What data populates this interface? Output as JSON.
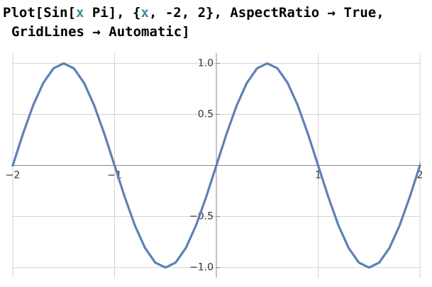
{
  "code": {
    "lines": [
      [
        "Plot[Sin[",
        "x",
        " Pi], {",
        "x",
        ", -2, 2}, AspectRatio → True,"
      ],
      [
        "GridLines → Automatic]"
      ]
    ]
  },
  "chart_data": {
    "type": "line",
    "color": "#5e81b5",
    "grid": true,
    "x": [
      -2,
      -1.9,
      -1.8,
      -1.7,
      -1.6,
      -1.5,
      -1.4,
      -1.3,
      -1.2,
      -1.1,
      -1,
      -0.9,
      -0.8,
      -0.7,
      -0.6,
      -0.5,
      -0.4,
      -0.3,
      -0.2,
      -0.1,
      0,
      0.1,
      0.2,
      0.3,
      0.4,
      0.5,
      0.6,
      0.7,
      0.8,
      0.9,
      1,
      1.1,
      1.2,
      1.3,
      1.4,
      1.5,
      1.6,
      1.7,
      1.8,
      1.9,
      2
    ],
    "values": [
      0,
      0.309,
      0.588,
      0.809,
      0.951,
      1,
      0.951,
      0.809,
      0.588,
      0.309,
      0,
      -0.309,
      -0.588,
      -0.809,
      -0.951,
      -1,
      -0.951,
      -0.809,
      -0.588,
      -0.309,
      0,
      0.309,
      0.588,
      0.809,
      0.951,
      1,
      0.951,
      0.809,
      0.588,
      0.309,
      0,
      -0.309,
      -0.588,
      -0.809,
      -0.951,
      -1,
      -0.951,
      -0.809,
      -0.588,
      -0.309,
      0
    ],
    "xlim": [
      -2,
      2
    ],
    "ylim": [
      -1.1,
      1.1
    ],
    "xticks": [
      {
        "value": -2,
        "label": "−2"
      },
      {
        "value": -1,
        "label": "−1"
      },
      1,
      2
    ],
    "yticks": [
      {
        "value": -1,
        "label": "−1.0"
      },
      {
        "value": -0.5,
        "label": "−0.5"
      },
      0.5,
      {
        "value": 1,
        "label": "1.0"
      }
    ]
  }
}
